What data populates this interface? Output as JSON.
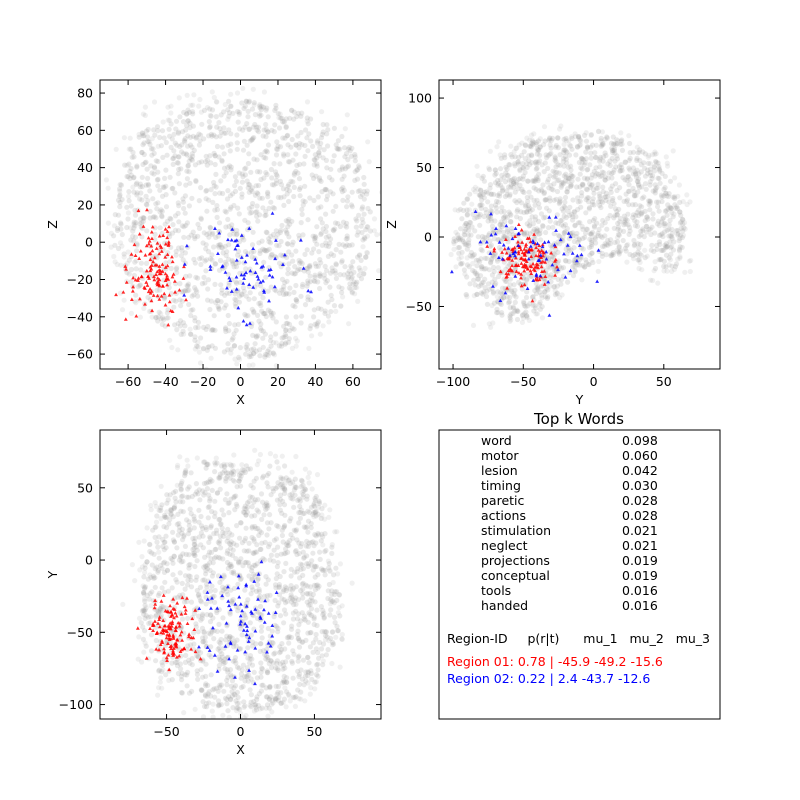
{
  "colors": {
    "background": "#ffffff",
    "cloud": "#999999",
    "region_01": "#ff0000",
    "region_02": "#0000ff"
  },
  "chart_data": [
    {
      "type": "scatter",
      "name": "coronal",
      "grid": false,
      "xlabel": "X",
      "ylabel": "Z",
      "xlim": [
        -75,
        75
      ],
      "ylim": [
        -68,
        87
      ],
      "xticks": [
        "−60",
        "−40",
        "−20",
        "0",
        "20",
        "40",
        "60"
      ],
      "yticks": [
        "−60",
        "−40",
        "−20",
        "0",
        "20",
        "40",
        "60",
        "80"
      ],
      "xtick_values": [
        -60,
        -40,
        -20,
        0,
        20,
        40,
        60
      ],
      "ytick_values": [
        -60,
        -40,
        -20,
        0,
        20,
        40,
        60,
        80
      ],
      "series": [
        {
          "marker": "circle",
          "color": "#999999",
          "fill": "envelope",
          "envelope_x": [
            -68,
            -65,
            -60,
            -52,
            -40,
            -25,
            -10,
            0,
            10,
            25,
            40,
            52,
            62,
            68,
            70,
            69,
            66,
            60,
            52,
            42,
            30,
            22,
            12,
            0,
            -10,
            -20,
            -30,
            -40,
            -50,
            -58,
            -64,
            -67
          ],
          "envelope_y": [
            5,
            30,
            48,
            60,
            68,
            72,
            76,
            76,
            76,
            72,
            68,
            60,
            48,
            30,
            10,
            -5,
            -18,
            -28,
            -36,
            -44,
            -50,
            -58,
            -62,
            -62,
            -60,
            -58,
            -52,
            -46,
            -38,
            -28,
            -15,
            -5
          ]
        },
        {
          "marker": "triangle",
          "color": "#ff0000",
          "center": [
            -45.9,
            -15.6
          ],
          "spread": [
            7,
            12
          ],
          "count": 130
        },
        {
          "marker": "triangle",
          "color": "#0000ff",
          "center": [
            2.4,
            -12.6
          ],
          "spread": [
            13,
            12
          ],
          "count": 70
        }
      ]
    },
    {
      "type": "scatter",
      "name": "sagittal",
      "grid": false,
      "xlabel": "Y",
      "ylabel": "Z",
      "xlim": [
        -110,
        90
      ],
      "ylim": [
        -95,
        113
      ],
      "xticks": [
        "−100",
        "−50",
        "0",
        "50"
      ],
      "yticks": [
        "−50",
        "0",
        "50",
        "100"
      ],
      "xtick_values": [
        -100,
        -50,
        0,
        50
      ],
      "ytick_values": [
        -50,
        0,
        50,
        100
      ],
      "series": [
        {
          "marker": "circle",
          "color": "#999999",
          "fill": "envelope",
          "envelope_x": [
            -100,
            -95,
            -85,
            -70,
            -55,
            -40,
            -20,
            0,
            15,
            30,
            45,
            55,
            62,
            65,
            64,
            58,
            48,
            35,
            20,
            5,
            -10,
            -25,
            -40,
            -55,
            -70,
            -85,
            -95
          ],
          "envelope_y": [
            -5,
            20,
            38,
            55,
            65,
            70,
            72,
            74,
            72,
            66,
            55,
            40,
            25,
            5,
            -10,
            -22,
            -25,
            -18,
            -12,
            -15,
            -25,
            -40,
            -55,
            -60,
            -55,
            -40,
            -20
          ]
        },
        {
          "marker": "triangle",
          "color": "#ff0000",
          "center": [
            -49.2,
            -15.6
          ],
          "spread": [
            9,
            10
          ],
          "count": 130
        },
        {
          "marker": "triangle",
          "color": "#0000ff",
          "center": [
            -43.7,
            -12.6
          ],
          "spread": [
            20,
            14
          ],
          "count": 70
        }
      ]
    },
    {
      "type": "scatter",
      "name": "axial",
      "grid": false,
      "xlabel": "X",
      "ylabel": "Y",
      "xlim": [
        -95,
        95
      ],
      "ylim": [
        -110,
        90
      ],
      "xticks": [
        "−50",
        "0",
        "50"
      ],
      "yticks": [
        "−100",
        "−50",
        "0",
        "50"
      ],
      "xtick_values": [
        -50,
        0,
        50
      ],
      "ytick_values": [
        -100,
        -50,
        0,
        50
      ],
      "series": [
        {
          "marker": "circle",
          "color": "#999999",
          "fill": "envelope",
          "envelope_x": [
            -68,
            -66,
            -62,
            -56,
            -48,
            -38,
            -25,
            -10,
            0,
            10,
            25,
            38,
            48,
            56,
            62,
            66,
            68,
            66,
            60,
            50,
            38,
            24,
            10,
            0,
            -10,
            -24,
            -38,
            -50,
            -60,
            -66
          ],
          "envelope_y": [
            -35,
            -10,
            15,
            35,
            52,
            62,
            68,
            68,
            64,
            68,
            68,
            62,
            52,
            35,
            15,
            -10,
            -35,
            -55,
            -72,
            -85,
            -95,
            -102,
            -105,
            -105,
            -105,
            -102,
            -95,
            -85,
            -72,
            -55
          ]
        },
        {
          "marker": "triangle",
          "color": "#ff0000",
          "center": [
            -45.9,
            -49.2
          ],
          "spread": [
            8,
            11
          ],
          "count": 130
        },
        {
          "marker": "triangle",
          "color": "#0000ff",
          "center": [
            2.4,
            -43.7
          ],
          "spread": [
            14,
            18
          ],
          "count": 70
        }
      ]
    }
  ],
  "words_panel": {
    "title": "Top k Words",
    "words": [
      {
        "word": "word",
        "value": "0.098"
      },
      {
        "word": "motor",
        "value": "0.060"
      },
      {
        "word": "lesion",
        "value": "0.042"
      },
      {
        "word": "timing",
        "value": "0.030"
      },
      {
        "word": "paretic",
        "value": "0.028"
      },
      {
        "word": "actions",
        "value": "0.028"
      },
      {
        "word": "stimulation",
        "value": "0.021"
      },
      {
        "word": "neglect",
        "value": "0.021"
      },
      {
        "word": "projections",
        "value": "0.019"
      },
      {
        "word": "conceptual",
        "value": "0.019"
      },
      {
        "word": "tools",
        "value": "0.016"
      },
      {
        "word": "handed",
        "value": "0.016"
      }
    ],
    "region_header": "Region-ID     p(r|t)      mu_1   mu_2   mu_3",
    "regions": [
      {
        "label": "Region 01:   0.78  |   -45.9   -49.2   -15.6",
        "color": "#ff0000"
      },
      {
        "label": "Region 02:   0.22  |     2.4   -43.7   -12.6",
        "color": "#0000ff"
      }
    ]
  }
}
